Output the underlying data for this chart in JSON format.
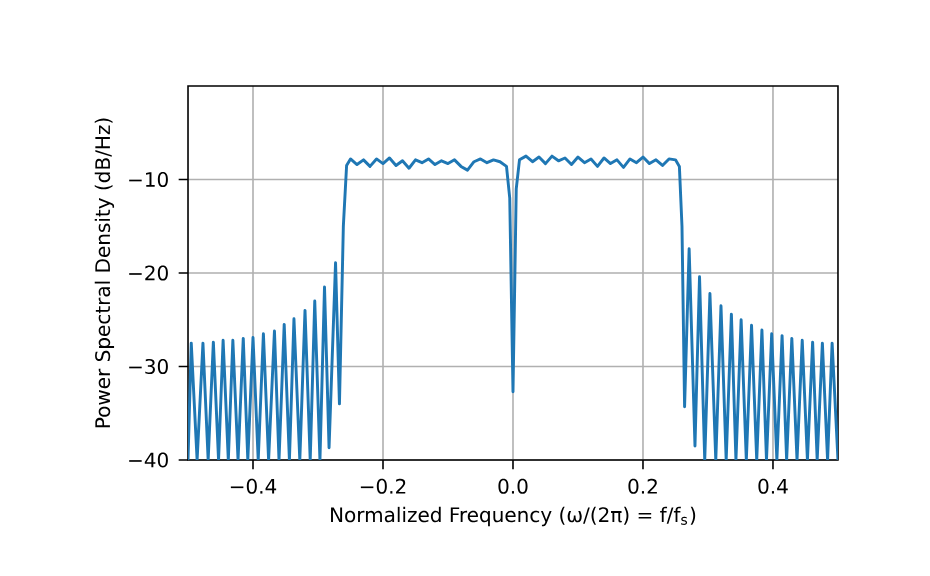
{
  "chart_data": {
    "type": "line",
    "xlabel": "Normalized Frequency (ω/(2π) = f/f$_{s}$)",
    "ylabel": "Power Spectral Density (dB/Hz)",
    "color": "#1f77b4",
    "grid": true,
    "xlim": [
      -0.5,
      0.5
    ],
    "ylim": [
      -40,
      0
    ],
    "xticks": [
      {
        "value": -0.4,
        "label": "−0.4"
      },
      {
        "value": -0.2,
        "label": "−0.2"
      },
      {
        "value": 0,
        "label": "0.0"
      },
      0.2,
      0.4
    ],
    "yticks": [
      {
        "value": -40,
        "label": "−40"
      },
      {
        "value": -30,
        "label": "−30"
      },
      {
        "value": -20,
        "label": "−20"
      },
      {
        "value": -10,
        "label": "−10"
      }
    ],
    "x": [
      -0.5,
      -0.495,
      -0.486,
      -0.477,
      -0.469,
      -0.461,
      -0.453,
      -0.446,
      -0.438,
      -0.431,
      -0.423,
      -0.415,
      -0.408,
      -0.4,
      -0.392,
      -0.384,
      -0.376,
      -0.367,
      -0.36,
      -0.352,
      -0.344,
      -0.337,
      -0.328,
      -0.32,
      -0.312,
      -0.305,
      -0.297,
      -0.29,
      -0.283,
      -0.273,
      -0.267,
      -0.261,
      -0.256,
      -0.25,
      -0.24,
      -0.23,
      -0.22,
      -0.21,
      -0.2,
      -0.19,
      -0.18,
      -0.17,
      -0.16,
      -0.15,
      -0.14,
      -0.13,
      -0.12,
      -0.11,
      -0.1,
      -0.09,
      -0.08,
      -0.07,
      -0.06,
      -0.05,
      -0.04,
      -0.03,
      -0.02,
      -0.01,
      -0.005,
      0.0,
      0.005,
      0.01,
      0.02,
      0.03,
      0.04,
      0.05,
      0.06,
      0.07,
      0.08,
      0.09,
      0.1,
      0.11,
      0.12,
      0.13,
      0.14,
      0.15,
      0.16,
      0.17,
      0.18,
      0.19,
      0.2,
      0.21,
      0.22,
      0.23,
      0.24,
      0.25,
      0.256,
      0.26,
      0.264,
      0.271,
      0.28,
      0.287,
      0.295,
      0.303,
      0.312,
      0.32,
      0.328,
      0.336,
      0.343,
      0.351,
      0.359,
      0.367,
      0.375,
      0.383,
      0.39,
      0.398,
      0.406,
      0.414,
      0.421,
      0.429,
      0.437,
      0.445,
      0.453,
      0.461,
      0.468,
      0.476,
      0.484,
      0.491,
      0.5
    ],
    "values": [
      -40,
      -27.5,
      -40,
      -27.5,
      -40,
      -27.4,
      -40,
      -27.2,
      -40,
      -27.2,
      -40,
      -27.0,
      -40,
      -26.9,
      -40,
      -26.5,
      -40,
      -26.2,
      -40,
      -25.5,
      -40,
      -24.9,
      -40,
      -24.0,
      -40,
      -23.0,
      -40,
      -21.5,
      -38.7,
      -18.9,
      -34.0,
      -15,
      -8.5,
      -7.8,
      -8.4,
      -7.9,
      -8.6,
      -7.8,
      -8.3,
      -7.7,
      -8.5,
      -8.0,
      -8.8,
      -7.9,
      -8.2,
      -7.8,
      -8.4,
      -8.0,
      -8.3,
      -7.9,
      -8.6,
      -9.0,
      -8.1,
      -7.8,
      -8.2,
      -7.9,
      -8.1,
      -8.6,
      -12,
      -32.7,
      -11,
      -7.9,
      -7.5,
      -8.1,
      -7.6,
      -8.3,
      -7.5,
      -8.0,
      -7.7,
      -8.4,
      -7.6,
      -8.2,
      -7.8,
      -8.6,
      -7.7,
      -8.3,
      -7.9,
      -8.7,
      -7.8,
      -8.2,
      -7.6,
      -8.3,
      -7.9,
      -8.5,
      -7.8,
      -7.9,
      -8.6,
      -15,
      -34.3,
      -17.4,
      -38.5,
      -20.4,
      -40,
      -22.2,
      -40,
      -23.5,
      -40,
      -24.4,
      -40,
      -25.0,
      -40,
      -25.6,
      -40,
      -26.1,
      -40,
      -26.5,
      -40,
      -26.7,
      -40,
      -27.0,
      -40,
      -27.2,
      -40,
      -27.4,
      -40,
      -27.5,
      -40,
      -27.5,
      -40
    ]
  }
}
